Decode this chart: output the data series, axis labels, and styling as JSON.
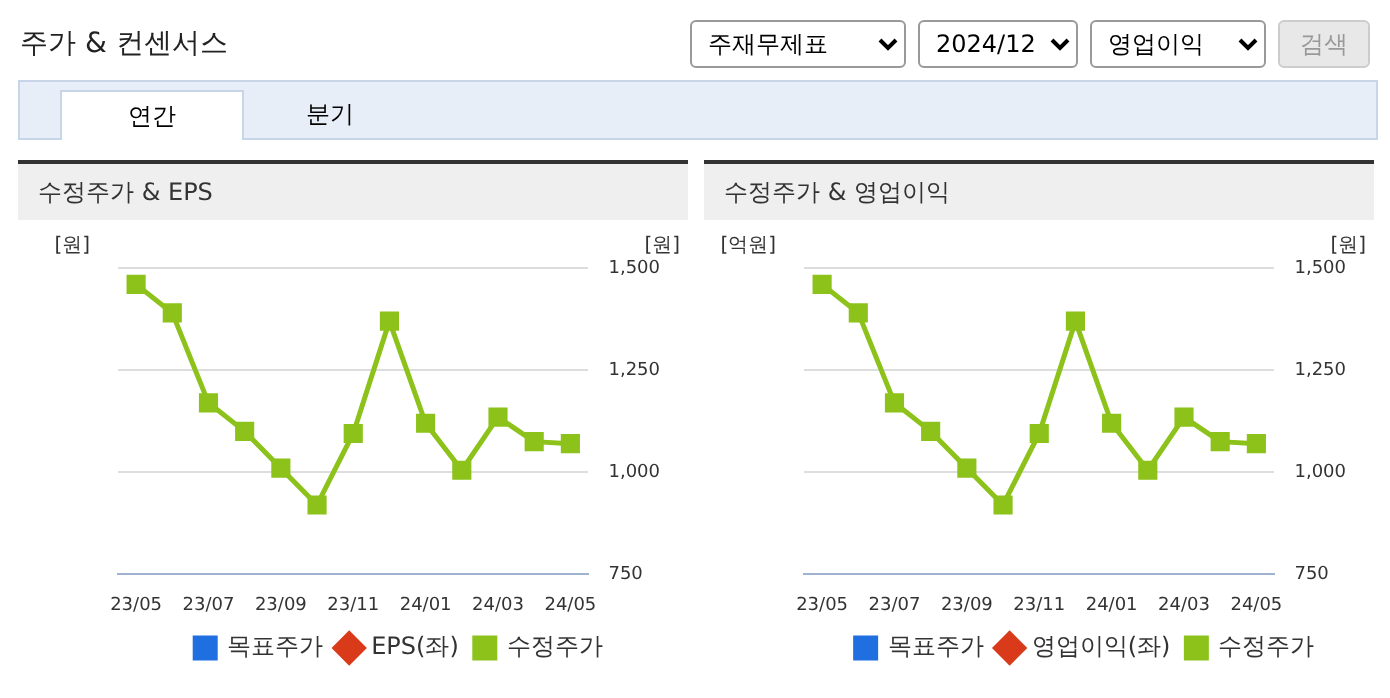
{
  "chart_data": [
    {
      "type": "other",
      "title": "주가 & 컨센서스",
      "annotations": [
        "주재무제표",
        "2024/12",
        "영업이익",
        "검색",
        "연간",
        "분기"
      ]
    },
    {
      "type": "line",
      "title": "수정주가 & EPS",
      "ylabel": "[원]",
      "y2label": "[원]",
      "categories": [
        "23/05",
        null,
        "23/07",
        null,
        "23/09",
        null,
        "23/11",
        null,
        "24/01",
        null,
        "24/03",
        null,
        "24/05"
      ],
      "series": [
        {
          "name": "목표주가",
          "type": "bar",
          "color": "#1f6fe0",
          "axis": "y",
          "marker": "square",
          "values": [
            null,
            null,
            null,
            null,
            null,
            null,
            null,
            null,
            null,
            null,
            null,
            null,
            null
          ]
        },
        {
          "name": "EPS(좌)",
          "type": "line",
          "color": "#d83a1a",
          "axis": "y",
          "marker": "diamond",
          "values": [
            null,
            null,
            null,
            null,
            null,
            null,
            null,
            null,
            null,
            null,
            null,
            null,
            null
          ]
        },
        {
          "name": "수정주가",
          "type": "line",
          "color": "#8cc21a",
          "axis": "y2",
          "marker": "square",
          "values": [
            1460,
            1390,
            1170,
            1100,
            1010,
            920,
            1095,
            1370,
            1120,
            1005,
            1135,
            1075,
            1070
          ]
        }
      ],
      "y2lim": [
        750,
        1500
      ],
      "y2ticks": [
        {
          "value": 750,
          "label": "750"
        },
        {
          "value": 1000,
          "label": "1,000"
        },
        {
          "value": 1250,
          "label": "1,250"
        },
        {
          "value": 1500,
          "label": "1,500"
        }
      ],
      "grid": "y",
      "legend": "bottom"
    },
    {
      "type": "line",
      "title": "수정주가 & 영업이익",
      "ylabel": "[억원]",
      "y2label": "[원]",
      "categories": [
        "23/05",
        null,
        "23/07",
        null,
        "23/09",
        null,
        "23/11",
        null,
        "24/01",
        null,
        "24/03",
        null,
        "24/05"
      ],
      "series": [
        {
          "name": "목표주가",
          "type": "bar",
          "color": "#1f6fe0",
          "axis": "y",
          "marker": "square",
          "values": [
            null,
            null,
            null,
            null,
            null,
            null,
            null,
            null,
            null,
            null,
            null,
            null,
            null
          ]
        },
        {
          "name": "영업이익(좌)",
          "type": "line",
          "color": "#d83a1a",
          "axis": "y",
          "marker": "diamond",
          "values": [
            null,
            null,
            null,
            null,
            null,
            null,
            null,
            null,
            null,
            null,
            null,
            null,
            null
          ]
        },
        {
          "name": "수정주가",
          "type": "line",
          "color": "#8cc21a",
          "axis": "y2",
          "marker": "square",
          "values": [
            1460,
            1390,
            1170,
            1100,
            1010,
            920,
            1095,
            1370,
            1120,
            1005,
            1135,
            1075,
            1070
          ]
        }
      ],
      "y2lim": [
        750,
        1500
      ],
      "y2ticks": [
        {
          "value": 750,
          "label": "750"
        },
        {
          "value": 1000,
          "label": "1,000"
        },
        {
          "value": 1250,
          "label": "1,250"
        },
        {
          "value": 1500,
          "label": "1,500"
        }
      ],
      "grid": "y",
      "legend": "bottom"
    }
  ]
}
